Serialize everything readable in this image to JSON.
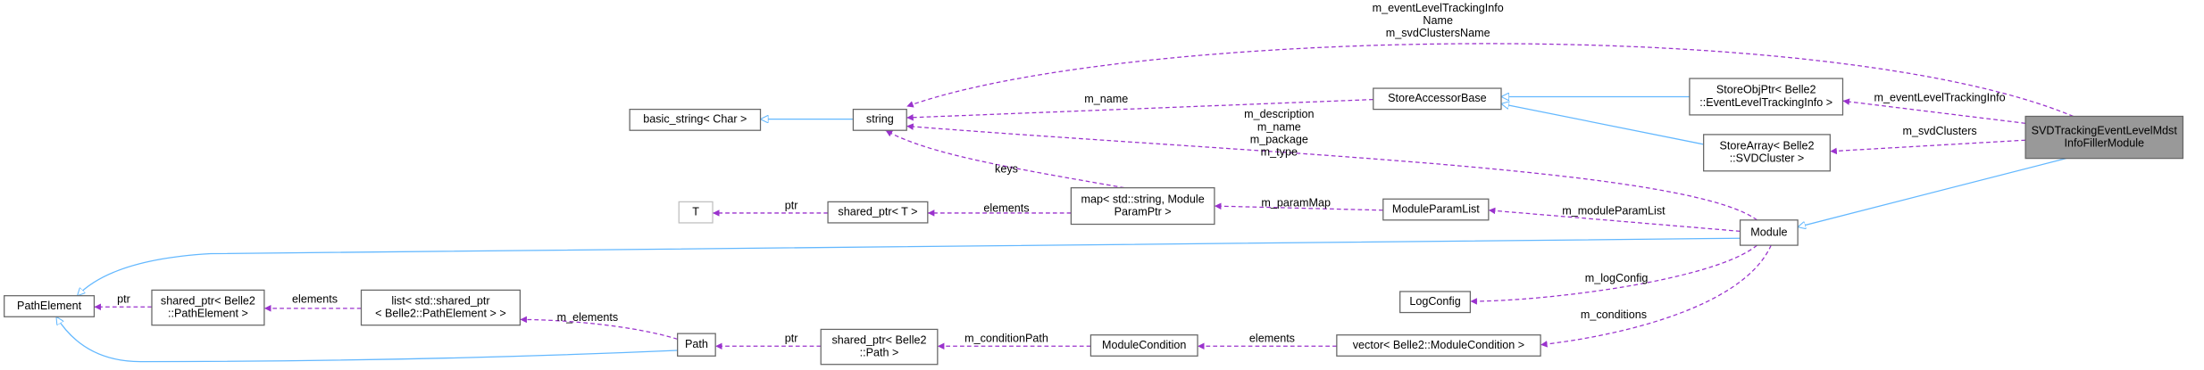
{
  "nodes": [
    {
      "label": [
        "SVDTrackingEventLevelMdst",
        "InfoFillerModule"
      ]
    },
    {
      "label": [
        "StoreObjPtr< Belle2",
        "::EventLevelTrackingInfo >"
      ]
    },
    {
      "label": [
        "StoreArray< Belle2",
        "::SVDCluster >"
      ]
    },
    {
      "label": [
        "StoreAccessorBase"
      ]
    },
    {
      "label": [
        "string"
      ]
    },
    {
      "label": [
        "basic_string< Char >"
      ]
    },
    {
      "label": [
        "Module"
      ]
    },
    {
      "label": [
        "map< std::string, Module",
        "ParamPtr >"
      ]
    },
    {
      "label": [
        "ModuleParamList"
      ]
    },
    {
      "label": [
        "shared_ptr< T >"
      ]
    },
    {
      "label": [
        "T"
      ]
    },
    {
      "label": [
        "PathElement"
      ]
    },
    {
      "label": [
        "shared_ptr< Belle2",
        "::PathElement >"
      ]
    },
    {
      "label": [
        "list< std::shared_ptr",
        "< Belle2::PathElement > >"
      ]
    },
    {
      "label": [
        "LogConfig"
      ]
    },
    {
      "label": [
        "Path"
      ]
    },
    {
      "label": [
        "shared_ptr< Belle2",
        "::Path >"
      ]
    },
    {
      "label": [
        "ModuleCondition"
      ]
    },
    {
      "label": [
        "vector< Belle2::ModuleCondition >"
      ]
    }
  ],
  "edges": [
    {
      "label": [
        "m_eventLevelTrackingInfo",
        "Name",
        "m_svdClustersName"
      ]
    },
    {
      "label": [
        "m_name"
      ]
    },
    {
      "label": [
        "m_eventLevelTrackingInfo"
      ]
    },
    {
      "label": [
        "m_svdClusters"
      ]
    },
    {
      "label": [
        "m_description",
        "m_name",
        "m_package",
        "m_type"
      ]
    },
    {
      "label": [
        "keys"
      ]
    },
    {
      "label": [
        "ptr"
      ]
    },
    {
      "label": [
        "elements"
      ]
    },
    {
      "label": [
        "m_paramMap"
      ]
    },
    {
      "label": [
        "m_moduleParamList"
      ]
    },
    {
      "label": [
        "ptr"
      ]
    },
    {
      "label": [
        "elements"
      ]
    },
    {
      "label": [
        "m_logConfig"
      ]
    },
    {
      "label": [
        "m_elements"
      ]
    },
    {
      "label": [
        "ptr"
      ]
    },
    {
      "label": [
        "m_conditionPath"
      ]
    },
    {
      "label": [
        "elements"
      ]
    },
    {
      "label": [
        "m_conditions"
      ]
    }
  ]
}
